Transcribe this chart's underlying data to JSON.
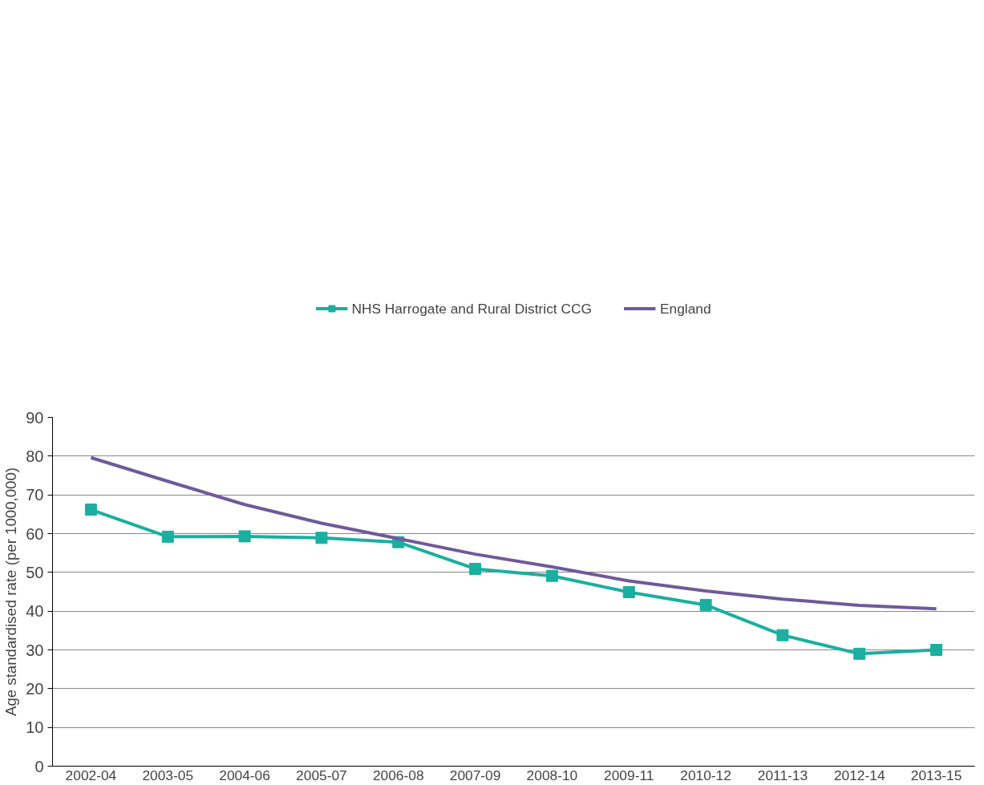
{
  "chart_data": {
    "type": "line",
    "ylabel": "Age standardised rate (per 1000,000)",
    "categories": [
      "2002-04",
      "2003-05",
      "2004-06",
      "2005-07",
      "2006-08",
      "2007-09",
      "2008-10",
      "2009-11",
      "2010-12",
      "2011-13",
      "2012-14",
      "2013-15"
    ],
    "series": [
      {
        "name": "NHS Harrogate and Rural District CCG",
        "color": "#1aafa0",
        "marker": "square",
        "values": [
          66.2,
          59.2,
          59.3,
          58.9,
          57.8,
          50.9,
          49.1,
          44.9,
          41.6,
          33.8,
          29.0,
          30.0
        ]
      },
      {
        "name": "England",
        "color": "#6e5a9a",
        "marker": "none",
        "values": [
          79.6,
          73.5,
          67.5,
          62.7,
          58.7,
          54.7,
          51.4,
          47.8,
          45.2,
          43.1,
          41.5,
          40.6
        ]
      }
    ],
    "ylim": [
      0,
      90
    ],
    "yticks": [
      0,
      10,
      20,
      30,
      40,
      50,
      60,
      70,
      80,
      90
    ],
    "grid": "y",
    "legend": "top"
  }
}
